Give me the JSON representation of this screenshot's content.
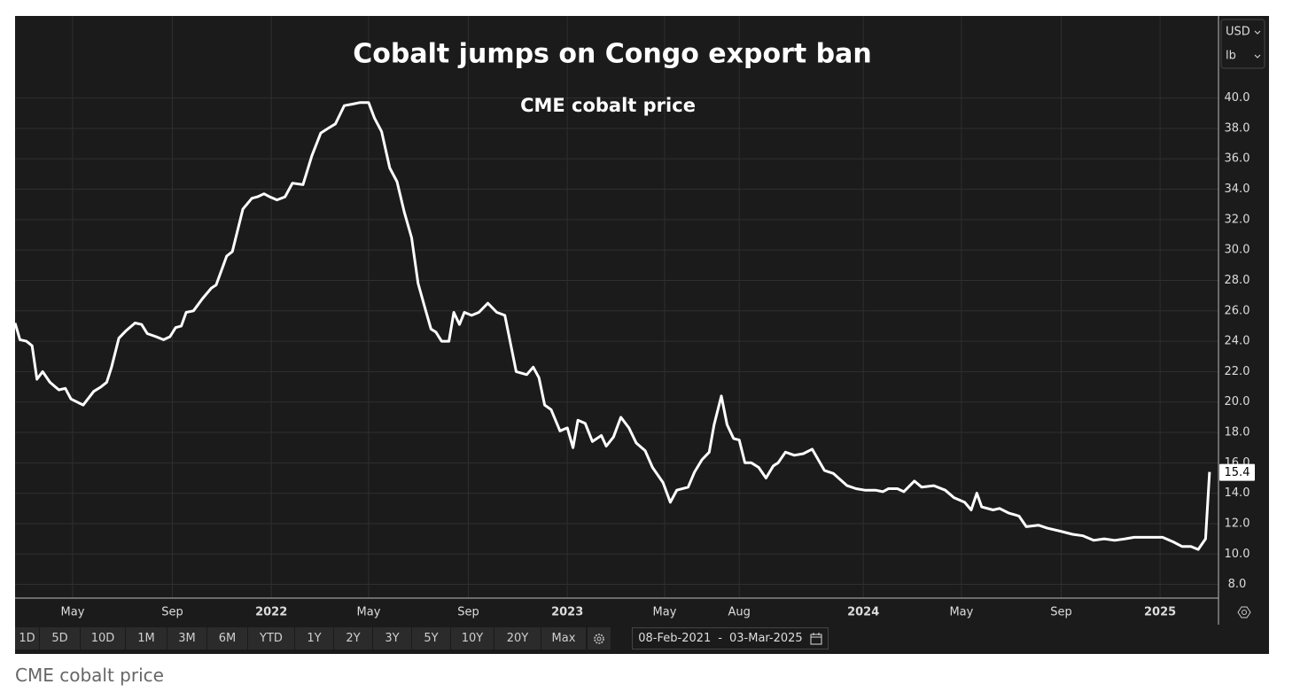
{
  "chart_data": {
    "type": "line",
    "title": "Cobalt jumps on Congo export ban",
    "subtitle": "CME cobalt price",
    "color": "#ffffff",
    "grid": true,
    "x": [
      "2021-02-19",
      "2021-02-25",
      "2021-03-05",
      "2021-03-12",
      "2021-03-18",
      "2021-03-25",
      "2021-04-03",
      "2021-04-14",
      "2021-04-22",
      "2021-04-29",
      "2021-05-14",
      "2021-05-27",
      "2021-06-05",
      "2021-06-12",
      "2021-06-18",
      "2021-06-27",
      "2021-07-06",
      "2021-07-17",
      "2021-07-25",
      "2021-08-01",
      "2021-08-12",
      "2021-08-21",
      "2021-08-29",
      "2021-09-05",
      "2021-09-12",
      "2021-09-18",
      "2021-09-27",
      "2021-10-08",
      "2021-10-19",
      "2021-10-25",
      "2021-11-07",
      "2021-11-14",
      "2021-11-27",
      "2021-12-08",
      "2021-12-15",
      "2021-12-23",
      "2021-12-30",
      "2022-01-08",
      "2022-01-18",
      "2022-01-27",
      "2022-02-09",
      "2022-02-20",
      "2022-03-03",
      "2022-03-12",
      "2022-03-21",
      "2022-04-01",
      "2022-04-11",
      "2022-04-20",
      "2022-05-01",
      "2022-05-08",
      "2022-05-17",
      "2022-05-27",
      "2022-06-05",
      "2022-06-14",
      "2022-06-23",
      "2022-07-01",
      "2022-07-10",
      "2022-07-17",
      "2022-07-23",
      "2022-07-30",
      "2022-08-08",
      "2022-08-14",
      "2022-08-21",
      "2022-08-27",
      "2022-09-05",
      "2022-09-14",
      "2022-09-25",
      "2022-10-06",
      "2022-10-16",
      "2022-10-30",
      "2022-11-12",
      "2022-11-20",
      "2022-11-27",
      "2022-12-04",
      "2022-12-12",
      "2022-12-23",
      "2023-01-01",
      "2023-01-08",
      "2023-01-14",
      "2023-01-23",
      "2023-02-01",
      "2023-02-12",
      "2023-02-18",
      "2023-02-27",
      "2023-03-08",
      "2023-03-18",
      "2023-03-27",
      "2023-04-07",
      "2023-04-16",
      "2023-04-29",
      "2023-05-08",
      "2023-05-16",
      "2023-05-30",
      "2023-06-07",
      "2023-06-16",
      "2023-06-25",
      "2023-07-01",
      "2023-07-10",
      "2023-07-17",
      "2023-07-25",
      "2023-08-01",
      "2023-08-08",
      "2023-08-16",
      "2023-08-25",
      "2023-09-03",
      "2023-09-12",
      "2023-09-18",
      "2023-09-27",
      "2023-10-08",
      "2023-10-19",
      "2023-10-30",
      "2023-11-14",
      "2023-11-25",
      "2023-12-12",
      "2023-12-23",
      "2024-01-03",
      "2024-01-16",
      "2024-01-25",
      "2024-02-01",
      "2024-02-12",
      "2024-02-20",
      "2024-03-04",
      "2024-03-13",
      "2024-03-28",
      "2024-04-11",
      "2024-04-22",
      "2024-05-05",
      "2024-05-13",
      "2024-05-20",
      "2024-05-26",
      "2024-06-09",
      "2024-06-17",
      "2024-06-28",
      "2024-07-11",
      "2024-07-20",
      "2024-08-04",
      "2024-08-15",
      "2024-08-31",
      "2024-09-15",
      "2024-09-28",
      "2024-10-11",
      "2024-10-24",
      "2024-11-06",
      "2024-11-19",
      "2024-11-30",
      "2024-12-22",
      "2025-01-04",
      "2025-01-17",
      "2025-01-28",
      "2025-02-08",
      "2025-02-17",
      "2025-02-26",
      "2025-03-03"
    ],
    "values": [
      25.2,
      24.1,
      24.0,
      23.7,
      21.5,
      22.0,
      21.3,
      20.8,
      20.9,
      20.2,
      19.8,
      20.7,
      21.0,
      21.3,
      22.3,
      24.2,
      24.7,
      25.2,
      25.1,
      24.5,
      24.3,
      24.1,
      24.3,
      24.9,
      25.0,
      25.9,
      26.0,
      26.8,
      27.5,
      27.7,
      29.6,
      29.9,
      32.7,
      33.4,
      33.5,
      33.7,
      33.5,
      33.3,
      33.5,
      34.4,
      34.3,
      36.2,
      37.7,
      38.0,
      38.3,
      39.5,
      39.6,
      39.7,
      39.7,
      38.7,
      37.8,
      35.4,
      34.5,
      32.5,
      30.8,
      27.8,
      26.1,
      24.8,
      24.6,
      24.0,
      24.0,
      25.9,
      25.1,
      25.9,
      25.7,
      25.9,
      26.5,
      25.9,
      25.7,
      22.0,
      21.8,
      22.3,
      21.6,
      19.8,
      19.5,
      18.1,
      18.3,
      17.0,
      18.8,
      18.6,
      17.4,
      17.8,
      17.1,
      17.7,
      19.0,
      18.3,
      17.3,
      16.8,
      15.7,
      14.7,
      13.4,
      14.2,
      14.4,
      15.4,
      16.2,
      16.7,
      18.5,
      20.4,
      18.5,
      17.6,
      17.5,
      16.0,
      16.0,
      15.7,
      15.0,
      15.8,
      16.0,
      16.7,
      16.5,
      16.6,
      16.9,
      15.5,
      15.3,
      14.5,
      14.3,
      14.2,
      14.2,
      14.1,
      14.3,
      14.3,
      14.1,
      14.8,
      14.4,
      14.5,
      14.2,
      13.7,
      13.4,
      12.9,
      14.0,
      13.1,
      12.9,
      13.0,
      12.7,
      12.5,
      11.8,
      11.9,
      11.7,
      11.5,
      11.3,
      11.2,
      10.9,
      11.0,
      10.9,
      11.0,
      11.1,
      11.1,
      11.1,
      10.8,
      10.5,
      10.5,
      10.3,
      11.0,
      15.4
    ],
    "xlim": [
      "2021-02-19",
      "2025-03-14"
    ],
    "xticks": [
      {
        "value": "2021-05-01",
        "label": "May"
      },
      {
        "value": "2021-09-01",
        "label": "Sep"
      },
      {
        "value": "2022-01-01",
        "label": "2022"
      },
      {
        "value": "2022-05-01",
        "label": "May"
      },
      {
        "value": "2022-09-01",
        "label": "Sep"
      },
      {
        "value": "2023-01-01",
        "label": "2023"
      },
      {
        "value": "2023-05-01",
        "label": "May"
      },
      {
        "value": "2023-08-01",
        "label": "Aug"
      },
      {
        "value": "2024-01-01",
        "label": "2024"
      },
      {
        "value": "2024-05-01",
        "label": "May"
      },
      {
        "value": "2024-09-01",
        "label": "Sep"
      },
      {
        "value": "2025-01-01",
        "label": "2025"
      }
    ],
    "ylim": [
      7.1,
      45.4
    ],
    "yticks": [
      {
        "value": 8,
        "label": "8.0"
      },
      {
        "value": 10,
        "label": "10.0"
      },
      {
        "value": 12,
        "label": "12.0"
      },
      {
        "value": 14,
        "label": "14.0"
      },
      {
        "value": 16,
        "label": "16.0"
      },
      {
        "value": 18,
        "label": "18.0"
      },
      {
        "value": 20,
        "label": "20.0"
      },
      {
        "value": 22,
        "label": "22.0"
      },
      {
        "value": 24,
        "label": "24.0"
      },
      {
        "value": 26,
        "label": "26.0"
      },
      {
        "value": 28,
        "label": "28.0"
      },
      {
        "value": 30,
        "label": "30.0"
      },
      {
        "value": 32,
        "label": "32.0"
      },
      {
        "value": 34,
        "label": "34.0"
      },
      {
        "value": 36,
        "label": "36.0"
      },
      {
        "value": 38,
        "label": "38.0"
      },
      {
        "value": 40,
        "label": "40.0"
      }
    ]
  },
  "controls": {
    "currency": "USD",
    "unit": "lb",
    "ranges": [
      "1D",
      "5D",
      "10D",
      "1M",
      "3M",
      "6M",
      "YTD",
      "1Y",
      "2Y",
      "3Y",
      "5Y",
      "10Y",
      "20Y",
      "Max"
    ],
    "date_from": "08-Feb-2021",
    "date_separator": "-",
    "date_to": "03-Mar-2025"
  },
  "caption": "CME cobalt price"
}
